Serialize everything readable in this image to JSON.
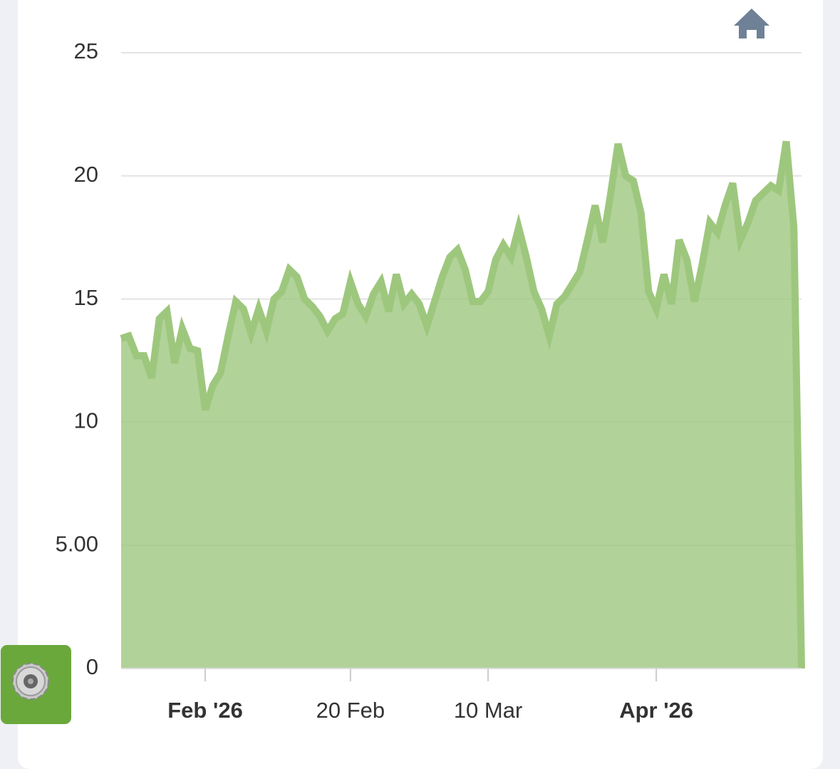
{
  "chart_data": {
    "type": "area",
    "x": [
      "2026-01-21",
      "2026-01-22",
      "2026-01-23",
      "2026-01-24",
      "2026-01-25",
      "2026-01-26",
      "2026-01-27",
      "2026-01-28",
      "2026-01-29",
      "2026-01-30",
      "2026-01-31",
      "2026-02-01",
      "2026-02-02",
      "2026-02-03",
      "2026-02-04",
      "2026-02-05",
      "2026-02-06",
      "2026-02-07",
      "2026-02-08",
      "2026-02-09",
      "2026-02-10",
      "2026-02-11",
      "2026-02-12",
      "2026-02-13",
      "2026-02-14",
      "2026-02-15",
      "2026-02-16",
      "2026-02-17",
      "2026-02-18",
      "2026-02-19",
      "2026-02-20",
      "2026-02-21",
      "2026-02-22",
      "2026-02-23",
      "2026-02-24",
      "2026-02-25",
      "2026-02-26",
      "2026-02-27",
      "2026-02-28",
      "2026-03-01",
      "2026-03-02",
      "2026-03-03",
      "2026-03-04",
      "2026-03-05",
      "2026-03-06",
      "2026-03-07",
      "2026-03-08",
      "2026-03-09",
      "2026-03-10",
      "2026-03-11",
      "2026-03-12",
      "2026-03-13",
      "2026-03-14",
      "2026-03-15",
      "2026-03-16",
      "2026-03-17",
      "2026-03-18",
      "2026-03-19",
      "2026-03-20",
      "2026-03-21",
      "2026-03-22",
      "2026-03-23",
      "2026-03-24",
      "2026-03-25",
      "2026-03-26",
      "2026-03-27",
      "2026-03-28",
      "2026-03-29",
      "2026-03-30",
      "2026-03-31",
      "2026-04-01",
      "2026-04-02",
      "2026-04-03",
      "2026-04-04",
      "2026-04-05",
      "2026-04-06",
      "2026-04-07",
      "2026-04-08",
      "2026-04-09",
      "2026-04-10",
      "2026-04-11",
      "2026-04-12",
      "2026-04-13",
      "2026-04-14",
      "2026-04-15",
      "2026-04-16",
      "2026-04-17",
      "2026-04-18",
      "2026-04-19",
      "2026-04-20"
    ],
    "values": [
      13.4,
      13.5,
      12.7,
      12.7,
      11.8,
      14.2,
      14.5,
      12.4,
      13.8,
      13.0,
      12.9,
      10.5,
      11.5,
      12.0,
      13.5,
      14.9,
      14.6,
      13.6,
      14.6,
      13.7,
      15.0,
      15.3,
      16.2,
      15.9,
      15.0,
      14.7,
      14.3,
      13.7,
      14.2,
      14.4,
      15.7,
      14.8,
      14.3,
      15.2,
      15.7,
      14.5,
      16.0,
      14.8,
      15.2,
      14.8,
      13.9,
      14.9,
      15.9,
      16.7,
      17.0,
      16.2,
      14.9,
      14.9,
      15.3,
      16.6,
      17.2,
      16.7,
      17.9,
      16.7,
      15.3,
      14.6,
      13.5,
      14.8,
      15.1,
      15.6,
      16.1,
      17.4,
      18.8,
      17.3,
      19.2,
      21.3,
      20.0,
      19.8,
      18.5,
      15.3,
      14.6,
      16.0,
      14.8,
      17.4,
      16.6,
      14.9,
      16.4,
      18.1,
      17.7,
      18.8,
      19.7,
      17.4,
      18.1,
      19.0,
      19.3,
      19.6,
      19.4,
      21.4,
      17.9,
      0
    ],
    "color": "#9ec77e",
    "ylim": [
      0,
      25
    ],
    "yticks": [
      0,
      {
        "value": 5,
        "label": "5.00"
      },
      10,
      15,
      20,
      25
    ],
    "xlim": [
      "2026-01-21",
      "2026-04-20"
    ],
    "xticks": [
      {
        "value": "2026-02-01",
        "label": "Feb '26"
      },
      {
        "value": "2026-02-20",
        "label": "20 Feb"
      },
      {
        "value": "2026-03-10",
        "label": "10 Mar"
      },
      {
        "value": "2026-04-01",
        "label": "Apr '26"
      }
    ],
    "grid": true
  }
}
